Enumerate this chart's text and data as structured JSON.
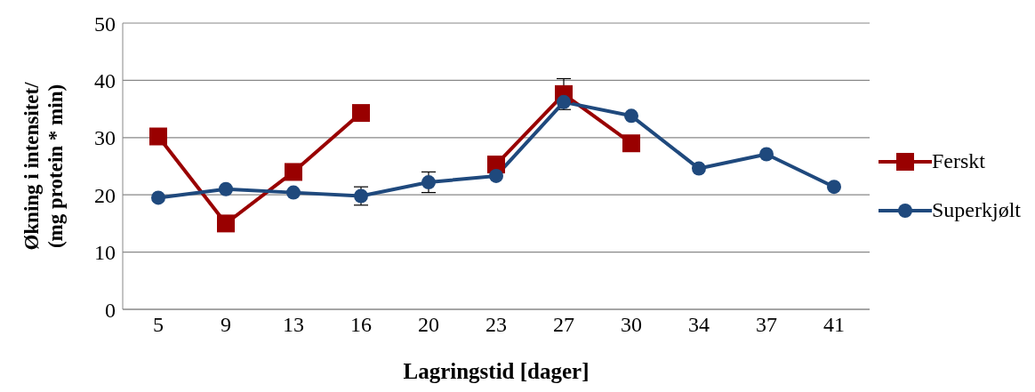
{
  "chart_data": {
    "type": "line",
    "xlabel": "Lagringstid [dager]",
    "ylabel": "Økning i intensitet/\n(mg protein * min)",
    "categories": [
      "5",
      "9",
      "13",
      "16",
      "20",
      "23",
      "27",
      "30",
      "34",
      "37",
      "41"
    ],
    "series": [
      {
        "name": "Ferskt",
        "color": "#990000",
        "marker": "square",
        "values": [
          30.2,
          15,
          24,
          34.3,
          null,
          25.3,
          37.6,
          29,
          null,
          null,
          null
        ],
        "errors": [
          null,
          null,
          null,
          null,
          null,
          null,
          2.7,
          null,
          null,
          null,
          null
        ]
      },
      {
        "name": "Superkjølt",
        "color": "#1f497d",
        "marker": "circle",
        "values": [
          19.5,
          21,
          20.4,
          19.8,
          22.2,
          23.3,
          36.2,
          33.8,
          24.6,
          27.1,
          21.4
        ],
        "errors": [
          null,
          null,
          null,
          1.6,
          1.8,
          null,
          null,
          null,
          null,
          null,
          null
        ]
      }
    ],
    "ylim": [
      0,
      50
    ],
    "yticks": [
      0,
      10,
      20,
      30,
      40,
      50
    ],
    "grid": "y",
    "legend": "right",
    "line_style": "solid"
  }
}
